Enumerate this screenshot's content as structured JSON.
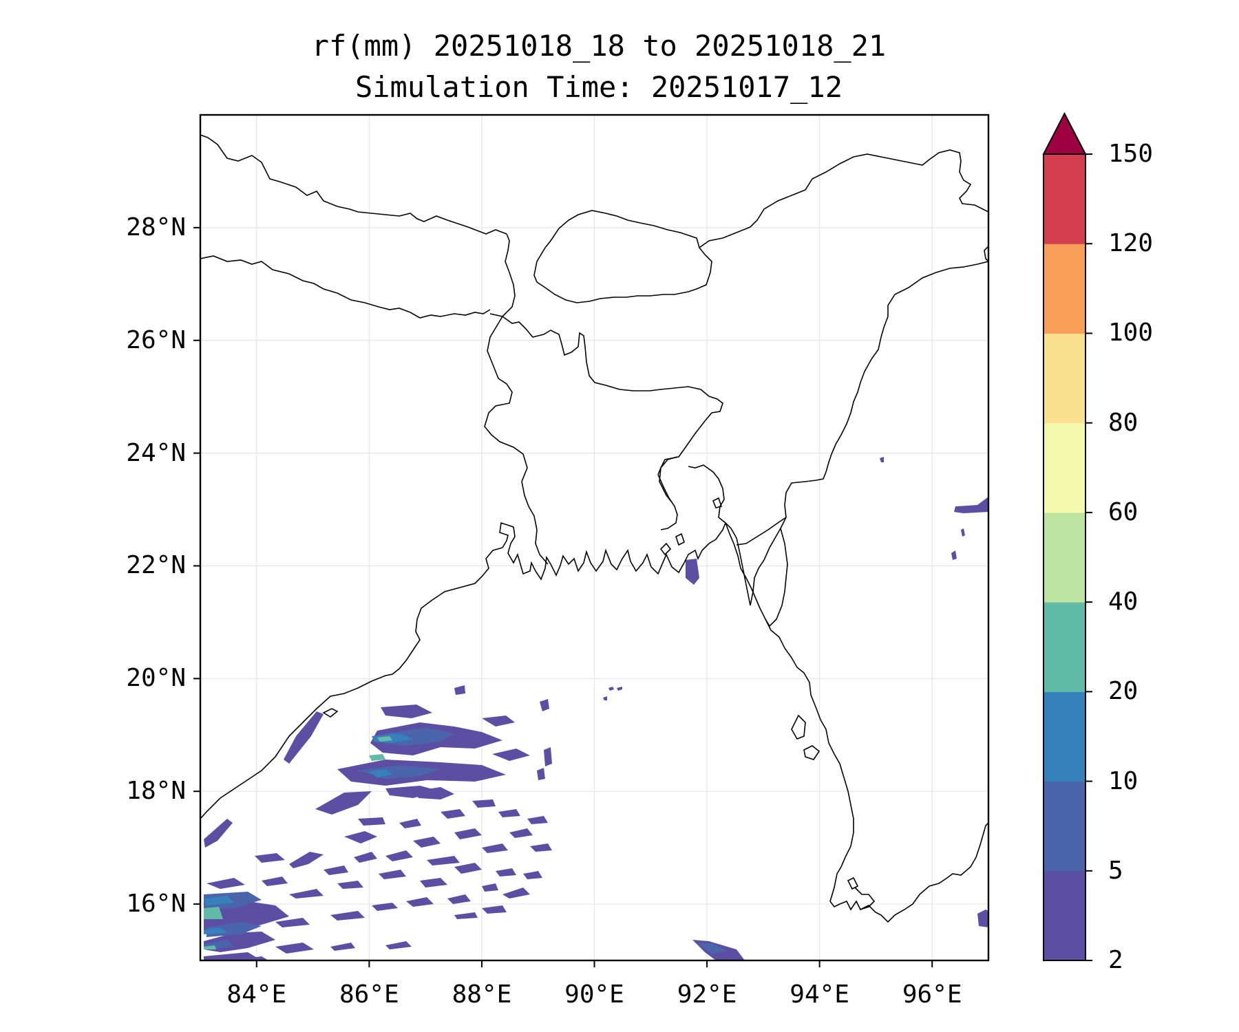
{
  "title": {
    "line1": "rf(mm) 20251018_18 to 20251018_21",
    "line2": "Simulation Time: 20251017_12"
  },
  "map": {
    "lon_range": [
      83,
      97
    ],
    "lat_range": [
      15,
      30
    ],
    "lat_ticks": [
      {
        "value": 28,
        "label": "28°N"
      },
      {
        "value": 26,
        "label": "26°N"
      },
      {
        "value": 24,
        "label": "24°N"
      },
      {
        "value": 22,
        "label": "22°N"
      },
      {
        "value": 20,
        "label": "20°N"
      },
      {
        "value": 18,
        "label": "18°N"
      },
      {
        "value": 16,
        "label": "16°N"
      }
    ],
    "lon_ticks": [
      {
        "value": 84,
        "label": "84°E"
      },
      {
        "value": 86,
        "label": "86°E"
      },
      {
        "value": 88,
        "label": "88°E"
      },
      {
        "value": 90,
        "label": "90°E"
      },
      {
        "value": 92,
        "label": "92°E"
      },
      {
        "value": 94,
        "label": "94°E"
      },
      {
        "value": 96,
        "label": "96°E"
      }
    ]
  },
  "colorbar": {
    "levels": [
      "2",
      "5",
      "10",
      "20",
      "40",
      "60",
      "80",
      "100",
      "120",
      "150"
    ],
    "colors": [
      "#5b4ea3",
      "#4b65ad",
      "#3681bb",
      "#62bba9",
      "#bde4a0",
      "#f3f8ad",
      "#fbe08e",
      "#f9a15b",
      "#ef7d4d",
      "#d13d4f"
    ],
    "band_colors": [
      "#5b4ea3",
      "#4b65ad",
      "#3681bb",
      "#62bba9",
      "#bde4a0",
      "#f3f8ad",
      "#fbe08e",
      "#f99f59",
      "#d53e4f"
    ],
    "extend_color": "#9e0142"
  },
  "rainfall": {
    "units": "mm",
    "areas": [
      {
        "lon": 85.3,
        "lat": 18.6,
        "level": "5"
      },
      {
        "lon": 86.5,
        "lat": 18.7,
        "level": "20"
      },
      {
        "lon": 86.0,
        "lat": 18.5,
        "level": "20"
      },
      {
        "lon": 83.2,
        "lat": 15.9,
        "level": "20"
      },
      {
        "lon": 83.4,
        "lat": 15.3,
        "level": "20"
      },
      {
        "lon": 91.8,
        "lat": 21.9,
        "level": "5"
      },
      {
        "lon": 96.7,
        "lat": 22.9,
        "level": "5"
      },
      {
        "lon": 96.9,
        "lat": 15.8,
        "level": "5"
      },
      {
        "lon": 92.3,
        "lat": 15.1,
        "level": "5"
      }
    ]
  }
}
